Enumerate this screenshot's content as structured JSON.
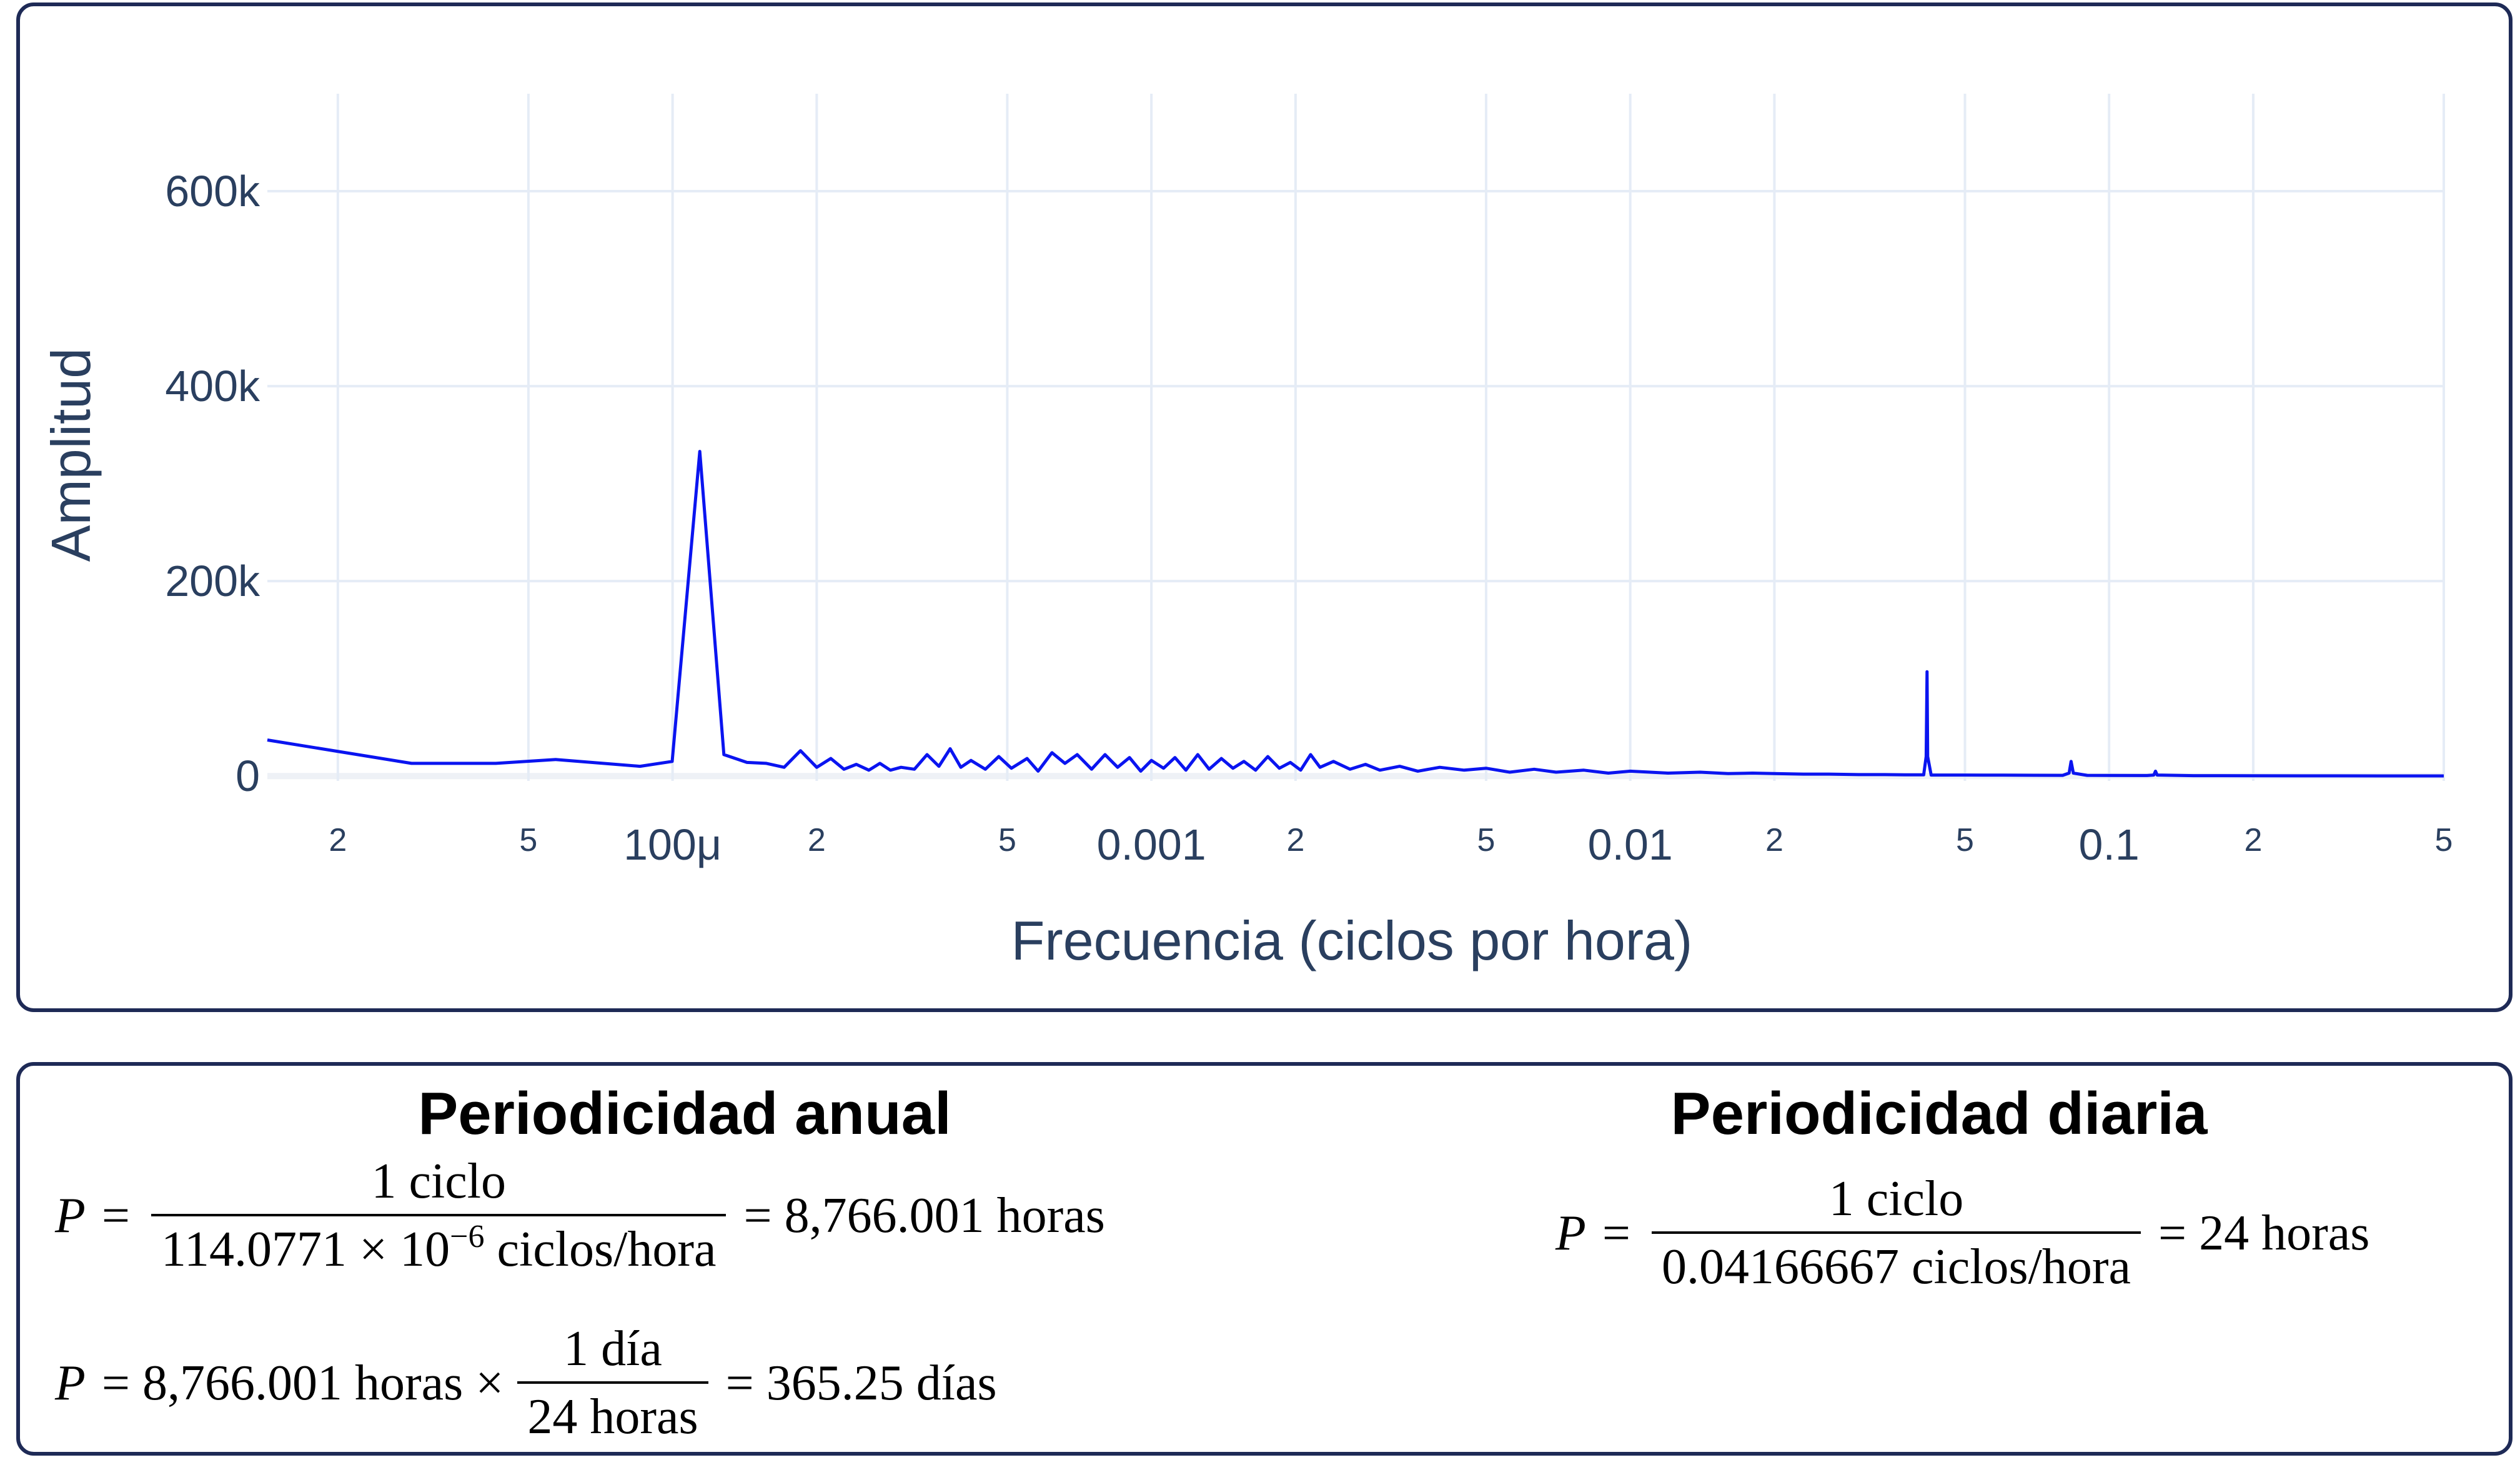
{
  "chart_data": {
    "type": "line",
    "xlabel": "Frecuencia (ciclos por hora)",
    "ylabel": "Amplitud",
    "x_scale": "log",
    "xlim": [
      1.425e-05,
      0.5
    ],
    "ylim": [
      -5000,
      700000
    ],
    "grid": true,
    "line_color": "#0a14f0",
    "y_ticks": [
      {
        "value": 0,
        "label": "0"
      },
      {
        "value": 200000,
        "label": "200k"
      },
      {
        "value": 400000,
        "label": "400k"
      },
      {
        "value": 600000,
        "label": "600k"
      }
    ],
    "x_ticks_major": [
      {
        "value": 0.0001,
        "label": "100μ"
      },
      {
        "value": 0.001,
        "label": "0.001"
      },
      {
        "value": 0.01,
        "label": "0.01"
      },
      {
        "value": 0.1,
        "label": "0.1"
      }
    ],
    "x_ticks_minor": [
      {
        "value": 2e-05,
        "label": "2"
      },
      {
        "value": 5e-05,
        "label": "5"
      },
      {
        "value": 0.0002,
        "label": "2"
      },
      {
        "value": 0.0005,
        "label": "5"
      },
      {
        "value": 0.002,
        "label": "2"
      },
      {
        "value": 0.005,
        "label": "5"
      },
      {
        "value": 0.02,
        "label": "2"
      },
      {
        "value": 0.05,
        "label": "5"
      },
      {
        "value": 0.2,
        "label": "2"
      },
      {
        "value": 0.5,
        "label": "5"
      }
    ],
    "series": [
      {
        "x": [
          1.425e-05,
          2.85e-05,
          4.275e-05,
          5.7e-05,
          8.55e-05,
          9.98e-05,
          0.000114,
          0.000128,
          0.000143,
          0.000157,
          0.000171,
          0.000185,
          0.0002,
          0.000214,
          0.000228,
          0.000242,
          0.000257,
          0.000271,
          0.000285,
          0.0003,
          0.00032,
          0.00034,
          0.00036,
          0.00038,
          0.0004,
          0.00042,
          0.00045,
          0.00048,
          0.00051,
          0.00055,
          0.00058,
          0.00062,
          0.00066,
          0.0007,
          0.00075,
          0.0008,
          0.00085,
          0.0009,
          0.00095,
          0.001,
          0.00106,
          0.00112,
          0.00118,
          0.00125,
          0.00132,
          0.0014,
          0.00148,
          0.00156,
          0.00165,
          0.00175,
          0.00185,
          0.00195,
          0.00205,
          0.00215,
          0.00225,
          0.0024,
          0.0026,
          0.0028,
          0.003,
          0.0033,
          0.0036,
          0.004,
          0.0045,
          0.005,
          0.0056,
          0.0063,
          0.007,
          0.008,
          0.009,
          0.01,
          0.012,
          0.014,
          0.016,
          0.018,
          0.02,
          0.023,
          0.026,
          0.03,
          0.034,
          0.038,
          0.041,
          0.0415,
          0.04166667,
          0.0418,
          0.0425,
          0.05,
          0.06,
          0.07,
          0.08,
          0.0825,
          0.0833,
          0.0842,
          0.09,
          0.1,
          0.12,
          0.124,
          0.125,
          0.126,
          0.15,
          0.2,
          0.3,
          0.4,
          0.5
        ],
        "y": [
          37000,
          13000,
          13000,
          17000,
          10000,
          15000,
          333000,
          22000,
          14000,
          13000,
          9000,
          26000,
          9000,
          18000,
          7000,
          12000,
          6000,
          13000,
          6000,
          9000,
          7000,
          22000,
          10000,
          28000,
          9000,
          16000,
          7000,
          20000,
          8000,
          18000,
          5000,
          24000,
          13000,
          22000,
          7000,
          22000,
          9000,
          19000,
          5000,
          16000,
          8000,
          19000,
          6000,
          22000,
          7000,
          18000,
          8000,
          15000,
          6000,
          20000,
          8000,
          14000,
          6000,
          22000,
          9000,
          15000,
          7000,
          12000,
          6000,
          10000,
          5000,
          9000,
          6000,
          8000,
          4000,
          7000,
          4000,
          6000,
          3000,
          5000,
          3000,
          4000,
          2500,
          3000,
          2500,
          2000,
          2000,
          1500,
          1500,
          1200,
          1200,
          20000,
          107000,
          20000,
          1000,
          1000,
          900,
          800,
          700,
          3000,
          15000,
          3000,
          700,
          600,
          500,
          1000,
          5000,
          1000,
          400,
          300,
          200,
          150,
          100
        ]
      }
    ]
  },
  "annual": {
    "title": "Periodicidad anual",
    "eq1": {
      "var": "P",
      "num": "1 ciclo",
      "den_value": "114.0771",
      "den_mid": "× 10",
      "den_exp": "−6",
      "den_unit": "ciclos/hora",
      "result": "= 8,766.001 horas"
    },
    "eq2": {
      "var": "P",
      "lhs": "= 8,766.001 horas ×",
      "num": "1 día",
      "den": "24 horas",
      "result": "= 365.25 días"
    }
  },
  "daily": {
    "title": "Periodicidad diaria",
    "eq1": {
      "var": "P",
      "num": "1 ciclo",
      "den": "0.04166667 ciclos/hora",
      "result": "= 24 horas"
    }
  }
}
